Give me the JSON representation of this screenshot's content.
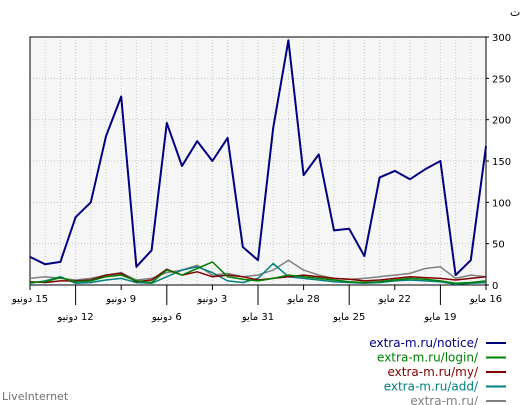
{
  "brand": "LiveInternet",
  "chart_data": {
    "type": "line",
    "ylabel": "المرات",
    "ylim": [
      0,
      300
    ],
    "yticks": [
      0,
      50,
      100,
      150,
      200,
      250,
      300
    ],
    "grid": true,
    "legend_placement": "bottom-right",
    "date_range": [
      "16 مايو",
      "15 دونيو"
    ],
    "x_tick_labels": [
      {
        "label": "16 مايو",
        "day": 0,
        "row": 1
      },
      {
        "label": "19 مايو",
        "day": 3,
        "row": 2
      },
      {
        "label": "22 مايو",
        "day": 6,
        "row": 1
      },
      {
        "label": "25 مايو",
        "day": 9,
        "row": 2
      },
      {
        "label": "28 مايو",
        "day": 12,
        "row": 1
      },
      {
        "label": "31 مايو",
        "day": 15,
        "row": 2
      },
      {
        "label": "3 دونيو",
        "day": 18,
        "row": 1
      },
      {
        "label": "6 دونيو",
        "day": 21,
        "row": 2
      },
      {
        "label": "9 دونيو",
        "day": 24,
        "row": 1
      },
      {
        "label": "12 دونيو",
        "day": 27,
        "row": 2
      },
      {
        "label": "15 دونيو",
        "day": 30,
        "row": 1
      }
    ],
    "series": [
      {
        "name": "extra-m.ru/notice/",
        "color": "#000080",
        "values": [
          168,
          30,
          12,
          150,
          140,
          128,
          138,
          130,
          35,
          68,
          66,
          158,
          133,
          296,
          190,
          30,
          46,
          178,
          150,
          174,
          144,
          196,
          42,
          22,
          228,
          180,
          100,
          82,
          28,
          25,
          34
        ]
      },
      {
        "name": "extra-m.ru/login/",
        "color": "#008000",
        "values": [
          5,
          3,
          2,
          5,
          7,
          8,
          6,
          4,
          3,
          4,
          6,
          8,
          10,
          12,
          8,
          5,
          7,
          10,
          28,
          20,
          12,
          18,
          3,
          5,
          12,
          10,
          5,
          4,
          9,
          4,
          3
        ]
      },
      {
        "name": "extra-m.ru/my/",
        "color": "#800000",
        "values": [
          10,
          8,
          6,
          8,
          9,
          10,
          8,
          6,
          5,
          7,
          8,
          10,
          12,
          10,
          8,
          6,
          10,
          12,
          10,
          16,
          12,
          19,
          6,
          4,
          14,
          12,
          6,
          5,
          5,
          3,
          4
        ]
      },
      {
        "name": "extra-m.ru/add/",
        "color": "#008080",
        "values": [
          3,
          2,
          1,
          4,
          5,
          6,
          5,
          3,
          2,
          3,
          4,
          6,
          8,
          10,
          26,
          8,
          3,
          5,
          15,
          22,
          18,
          10,
          2,
          3,
          8,
          6,
          3,
          2,
          10,
          5,
          2
        ]
      },
      {
        "name": "extra-m.ru/",
        "color": "#808080",
        "values": [
          10,
          12,
          8,
          22,
          20,
          14,
          12,
          10,
          8,
          7,
          8,
          12,
          18,
          30,
          18,
          12,
          10,
          14,
          12,
          24,
          18,
          15,
          8,
          6,
          15,
          12,
          8,
          6,
          8,
          10,
          8
        ]
      }
    ]
  }
}
